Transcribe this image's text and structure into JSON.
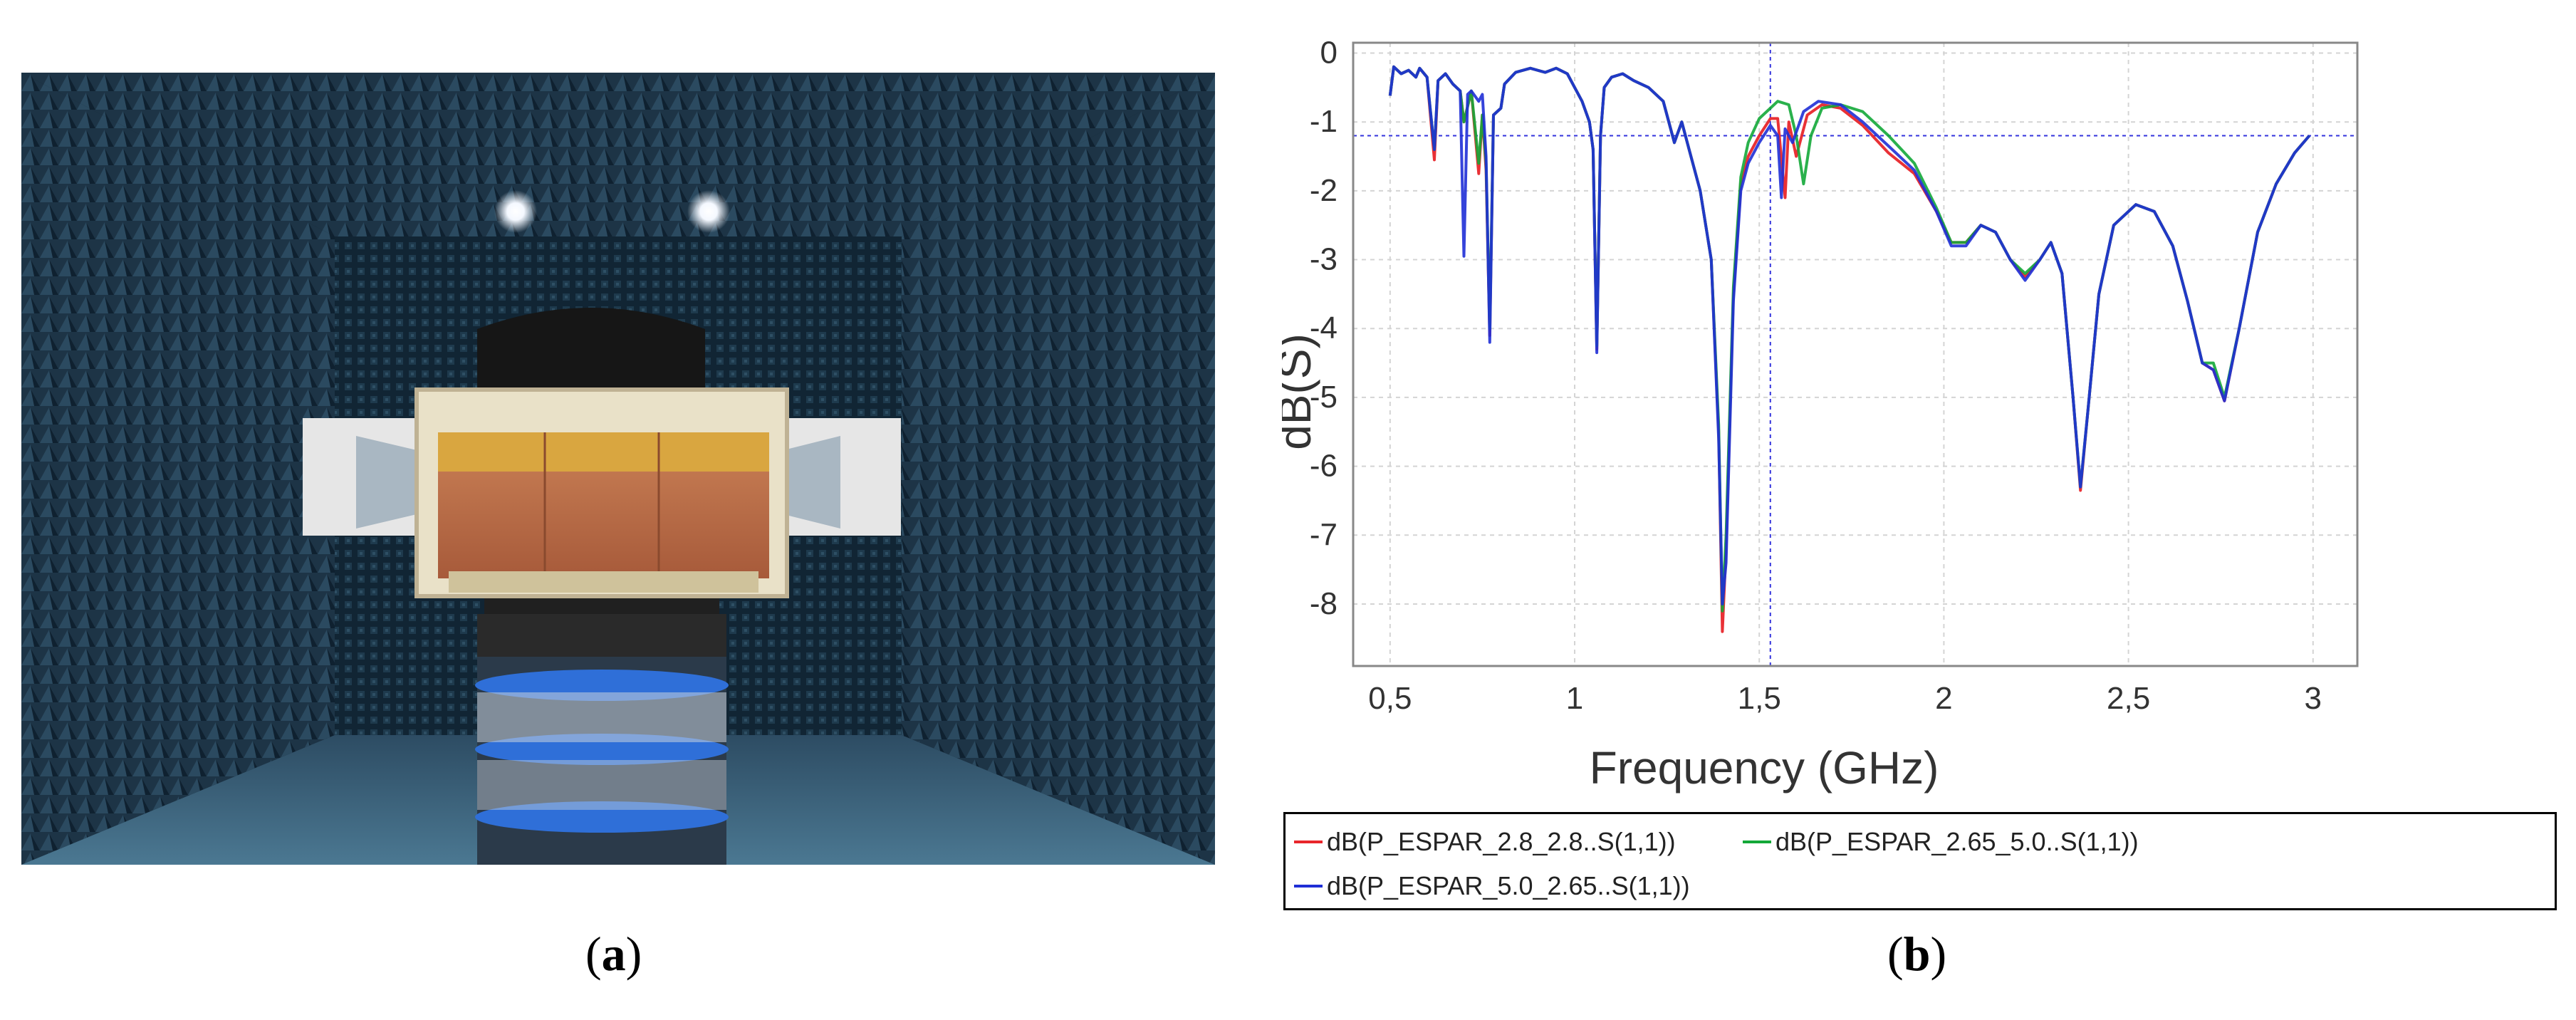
{
  "photo": {
    "subject": "antenna-in-anechoic-chamber"
  },
  "captions": {
    "a": "a",
    "b": "b"
  },
  "chart_data": {
    "type": "line",
    "xlabel": "Frequency (GHz)",
    "ylabel": "dB(S)",
    "xlim": [
      0.4,
      3.12
    ],
    "ylim": [
      -8.9,
      0.15
    ],
    "xticks": [
      {
        "value": 0.5,
        "label": "0,5"
      },
      {
        "value": 1.0,
        "label": "1"
      },
      {
        "value": 1.5,
        "label": "1,5"
      },
      {
        "value": 2.0,
        "label": "2"
      },
      {
        "value": 2.5,
        "label": "2,5"
      },
      {
        "value": 3.0,
        "label": "3"
      }
    ],
    "yticks": [
      {
        "value": 0,
        "label": "0"
      },
      {
        "value": -1,
        "label": "-1"
      },
      {
        "value": -2,
        "label": "-2"
      },
      {
        "value": -3,
        "label": "-3"
      },
      {
        "value": -4,
        "label": "-4"
      },
      {
        "value": -5,
        "label": "-5"
      },
      {
        "value": -6,
        "label": "-6"
      },
      {
        "value": -7,
        "label": "-7"
      },
      {
        "value": -8,
        "label": "-8"
      }
    ],
    "grid": true,
    "markers": {
      "x": 1.53,
      "y": -1.2,
      "color": "#3333dd"
    },
    "legend_position": "bottom",
    "series": [
      {
        "name": "dB(P_ESPAR_2.8_2.8..S(1,1))",
        "color": "#e8262b",
        "points": [
          [
            0.5,
            -0.62
          ],
          [
            0.51,
            -0.2
          ],
          [
            0.53,
            -0.3
          ],
          [
            0.55,
            -0.25
          ],
          [
            0.57,
            -0.35
          ],
          [
            0.58,
            -0.22
          ],
          [
            0.6,
            -0.35
          ],
          [
            0.62,
            -1.55
          ],
          [
            0.63,
            -0.4
          ],
          [
            0.65,
            -0.3
          ],
          [
            0.67,
            -0.45
          ],
          [
            0.69,
            -0.55
          ],
          [
            0.7,
            -1.0
          ],
          [
            0.72,
            -0.55
          ],
          [
            0.74,
            -1.75
          ],
          [
            0.75,
            -0.9
          ],
          [
            0.76,
            -1.7
          ],
          [
            0.77,
            -4.1
          ],
          [
            0.78,
            -0.9
          ],
          [
            0.8,
            -0.8
          ],
          [
            0.81,
            -0.45
          ],
          [
            0.84,
            -0.28
          ],
          [
            0.88,
            -0.22
          ],
          [
            0.92,
            -0.28
          ],
          [
            0.95,
            -0.22
          ],
          [
            0.98,
            -0.3
          ],
          [
            1.0,
            -0.5
          ],
          [
            1.02,
            -0.7
          ],
          [
            1.04,
            -1.0
          ],
          [
            1.05,
            -1.4
          ],
          [
            1.06,
            -4.3
          ],
          [
            1.07,
            -1.2
          ],
          [
            1.08,
            -0.5
          ],
          [
            1.1,
            -0.35
          ],
          [
            1.13,
            -0.3
          ],
          [
            1.16,
            -0.4
          ],
          [
            1.2,
            -0.5
          ],
          [
            1.24,
            -0.7
          ],
          [
            1.27,
            -1.3
          ],
          [
            1.29,
            -1.0
          ],
          [
            1.31,
            -1.4
          ],
          [
            1.34,
            -2.0
          ],
          [
            1.37,
            -3.0
          ],
          [
            1.39,
            -5.5
          ],
          [
            1.4,
            -8.4
          ],
          [
            1.41,
            -7.2
          ],
          [
            1.43,
            -3.5
          ],
          [
            1.45,
            -1.9
          ],
          [
            1.47,
            -1.5
          ],
          [
            1.5,
            -1.2
          ],
          [
            1.53,
            -0.95
          ],
          [
            1.55,
            -0.95
          ],
          [
            1.57,
            -2.1
          ],
          [
            1.58,
            -1.0
          ],
          [
            1.6,
            -1.5
          ],
          [
            1.63,
            -0.9
          ],
          [
            1.67,
            -0.75
          ],
          [
            1.72,
            -0.8
          ],
          [
            1.78,
            -1.05
          ],
          [
            1.85,
            -1.45
          ],
          [
            1.92,
            -1.75
          ],
          [
            1.98,
            -2.3
          ],
          [
            2.02,
            -2.75
          ],
          [
            2.06,
            -2.75
          ],
          [
            2.1,
            -2.5
          ],
          [
            2.14,
            -2.6
          ],
          [
            2.18,
            -3.0
          ],
          [
            2.22,
            -3.25
          ],
          [
            2.26,
            -3.0
          ],
          [
            2.29,
            -2.75
          ],
          [
            2.32,
            -3.2
          ],
          [
            2.35,
            -5.0
          ],
          [
            2.37,
            -6.35
          ],
          [
            2.39,
            -5.2
          ],
          [
            2.42,
            -3.5
          ],
          [
            2.46,
            -2.5
          ],
          [
            2.52,
            -2.2
          ],
          [
            2.57,
            -2.3
          ],
          [
            2.62,
            -2.8
          ],
          [
            2.66,
            -3.6
          ],
          [
            2.7,
            -4.5
          ],
          [
            2.73,
            -4.6
          ],
          [
            2.76,
            -5.05
          ],
          [
            2.8,
            -4.0
          ],
          [
            2.85,
            -2.6
          ],
          [
            2.9,
            -1.9
          ],
          [
            2.95,
            -1.45
          ],
          [
            2.99,
            -1.2
          ]
        ]
      },
      {
        "name": "dB(P_ESPAR_2.65_5.0..S(1,1))",
        "color": "#13a838",
        "points": [
          [
            0.5,
            -0.62
          ],
          [
            0.51,
            -0.2
          ],
          [
            0.53,
            -0.3
          ],
          [
            0.55,
            -0.25
          ],
          [
            0.57,
            -0.35
          ],
          [
            0.58,
            -0.22
          ],
          [
            0.6,
            -0.35
          ],
          [
            0.62,
            -1.4
          ],
          [
            0.63,
            -0.4
          ],
          [
            0.65,
            -0.3
          ],
          [
            0.67,
            -0.45
          ],
          [
            0.69,
            -0.55
          ],
          [
            0.7,
            -1.0
          ],
          [
            0.72,
            -0.55
          ],
          [
            0.74,
            -1.6
          ],
          [
            0.75,
            -0.9
          ],
          [
            0.76,
            -1.6
          ],
          [
            0.77,
            -4.0
          ],
          [
            0.78,
            -0.9
          ],
          [
            0.8,
            -0.8
          ],
          [
            0.81,
            -0.45
          ],
          [
            0.84,
            -0.28
          ],
          [
            0.88,
            -0.22
          ],
          [
            0.92,
            -0.28
          ],
          [
            0.95,
            -0.22
          ],
          [
            0.98,
            -0.3
          ],
          [
            1.0,
            -0.5
          ],
          [
            1.02,
            -0.7
          ],
          [
            1.04,
            -1.0
          ],
          [
            1.05,
            -1.4
          ],
          [
            1.06,
            -4.25
          ],
          [
            1.07,
            -1.2
          ],
          [
            1.08,
            -0.5
          ],
          [
            1.1,
            -0.35
          ],
          [
            1.13,
            -0.3
          ],
          [
            1.16,
            -0.4
          ],
          [
            1.2,
            -0.5
          ],
          [
            1.24,
            -0.7
          ],
          [
            1.27,
            -1.3
          ],
          [
            1.29,
            -1.0
          ],
          [
            1.31,
            -1.4
          ],
          [
            1.34,
            -2.0
          ],
          [
            1.37,
            -3.0
          ],
          [
            1.39,
            -5.4
          ],
          [
            1.4,
            -8.1
          ],
          [
            1.41,
            -7.0
          ],
          [
            1.43,
            -3.4
          ],
          [
            1.45,
            -1.8
          ],
          [
            1.47,
            -1.3
          ],
          [
            1.5,
            -0.95
          ],
          [
            1.53,
            -0.8
          ],
          [
            1.55,
            -0.7
          ],
          [
            1.58,
            -0.75
          ],
          [
            1.6,
            -1.2
          ],
          [
            1.62,
            -1.9
          ],
          [
            1.64,
            -1.2
          ],
          [
            1.67,
            -0.8
          ],
          [
            1.72,
            -0.75
          ],
          [
            1.78,
            -0.85
          ],
          [
            1.85,
            -1.2
          ],
          [
            1.92,
            -1.6
          ],
          [
            1.98,
            -2.25
          ],
          [
            2.02,
            -2.75
          ],
          [
            2.06,
            -2.75
          ],
          [
            2.1,
            -2.5
          ],
          [
            2.14,
            -2.6
          ],
          [
            2.18,
            -3.0
          ],
          [
            2.22,
            -3.2
          ],
          [
            2.26,
            -3.0
          ],
          [
            2.29,
            -2.75
          ],
          [
            2.32,
            -3.2
          ],
          [
            2.35,
            -5.0
          ],
          [
            2.37,
            -6.3
          ],
          [
            2.39,
            -5.2
          ],
          [
            2.42,
            -3.5
          ],
          [
            2.46,
            -2.5
          ],
          [
            2.52,
            -2.2
          ],
          [
            2.57,
            -2.3
          ],
          [
            2.62,
            -2.8
          ],
          [
            2.66,
            -3.6
          ],
          [
            2.7,
            -4.5
          ],
          [
            2.73,
            -4.5
          ],
          [
            2.76,
            -5.0
          ],
          [
            2.8,
            -4.0
          ],
          [
            2.85,
            -2.6
          ],
          [
            2.9,
            -1.9
          ],
          [
            2.95,
            -1.45
          ],
          [
            2.99,
            -1.2
          ]
        ]
      },
      {
        "name": "dB(P_ESPAR_5.0_2.65..S(1,1))",
        "color": "#1f2fd6",
        "points": [
          [
            0.5,
            -0.62
          ],
          [
            0.51,
            -0.2
          ],
          [
            0.53,
            -0.3
          ],
          [
            0.55,
            -0.25
          ],
          [
            0.57,
            -0.35
          ],
          [
            0.58,
            -0.22
          ],
          [
            0.6,
            -0.35
          ],
          [
            0.62,
            -1.4
          ],
          [
            0.63,
            -0.4
          ],
          [
            0.65,
            -0.3
          ],
          [
            0.67,
            -0.45
          ],
          [
            0.69,
            -0.55
          ],
          [
            0.7,
            -2.95
          ],
          [
            0.71,
            -0.6
          ],
          [
            0.72,
            -0.55
          ],
          [
            0.74,
            -0.7
          ],
          [
            0.75,
            -0.6
          ],
          [
            0.76,
            -1.5
          ],
          [
            0.77,
            -4.2
          ],
          [
            0.78,
            -0.9
          ],
          [
            0.8,
            -0.8
          ],
          [
            0.81,
            -0.45
          ],
          [
            0.84,
            -0.28
          ],
          [
            0.88,
            -0.22
          ],
          [
            0.92,
            -0.28
          ],
          [
            0.95,
            -0.22
          ],
          [
            0.98,
            -0.3
          ],
          [
            1.0,
            -0.5
          ],
          [
            1.02,
            -0.7
          ],
          [
            1.04,
            -1.0
          ],
          [
            1.05,
            -1.4
          ],
          [
            1.06,
            -4.35
          ],
          [
            1.07,
            -1.2
          ],
          [
            1.08,
            -0.5
          ],
          [
            1.1,
            -0.35
          ],
          [
            1.13,
            -0.3
          ],
          [
            1.16,
            -0.4
          ],
          [
            1.2,
            -0.5
          ],
          [
            1.24,
            -0.7
          ],
          [
            1.27,
            -1.3
          ],
          [
            1.29,
            -1.0
          ],
          [
            1.31,
            -1.4
          ],
          [
            1.34,
            -2.0
          ],
          [
            1.37,
            -3.0
          ],
          [
            1.39,
            -5.6
          ],
          [
            1.4,
            -8.0
          ],
          [
            1.41,
            -7.4
          ],
          [
            1.43,
            -3.6
          ],
          [
            1.45,
            -2.0
          ],
          [
            1.47,
            -1.6
          ],
          [
            1.5,
            -1.3
          ],
          [
            1.53,
            -1.05
          ],
          [
            1.55,
            -1.2
          ],
          [
            1.56,
            -2.1
          ],
          [
            1.57,
            -1.1
          ],
          [
            1.59,
            -1.3
          ],
          [
            1.62,
            -0.85
          ],
          [
            1.66,
            -0.7
          ],
          [
            1.72,
            -0.75
          ],
          [
            1.78,
            -1.0
          ],
          [
            1.85,
            -1.35
          ],
          [
            1.92,
            -1.7
          ],
          [
            1.98,
            -2.3
          ],
          [
            2.02,
            -2.8
          ],
          [
            2.06,
            -2.8
          ],
          [
            2.1,
            -2.5
          ],
          [
            2.14,
            -2.6
          ],
          [
            2.18,
            -3.0
          ],
          [
            2.22,
            -3.3
          ],
          [
            2.26,
            -3.0
          ],
          [
            2.29,
            -2.75
          ],
          [
            2.32,
            -3.2
          ],
          [
            2.35,
            -5.0
          ],
          [
            2.37,
            -6.3
          ],
          [
            2.39,
            -5.2
          ],
          [
            2.42,
            -3.5
          ],
          [
            2.46,
            -2.5
          ],
          [
            2.52,
            -2.2
          ],
          [
            2.57,
            -2.3
          ],
          [
            2.62,
            -2.8
          ],
          [
            2.66,
            -3.6
          ],
          [
            2.7,
            -4.5
          ],
          [
            2.73,
            -4.6
          ],
          [
            2.76,
            -5.05
          ],
          [
            2.8,
            -4.0
          ],
          [
            2.85,
            -2.6
          ],
          [
            2.9,
            -1.9
          ],
          [
            2.95,
            -1.45
          ],
          [
            2.99,
            -1.2
          ]
        ]
      }
    ]
  }
}
